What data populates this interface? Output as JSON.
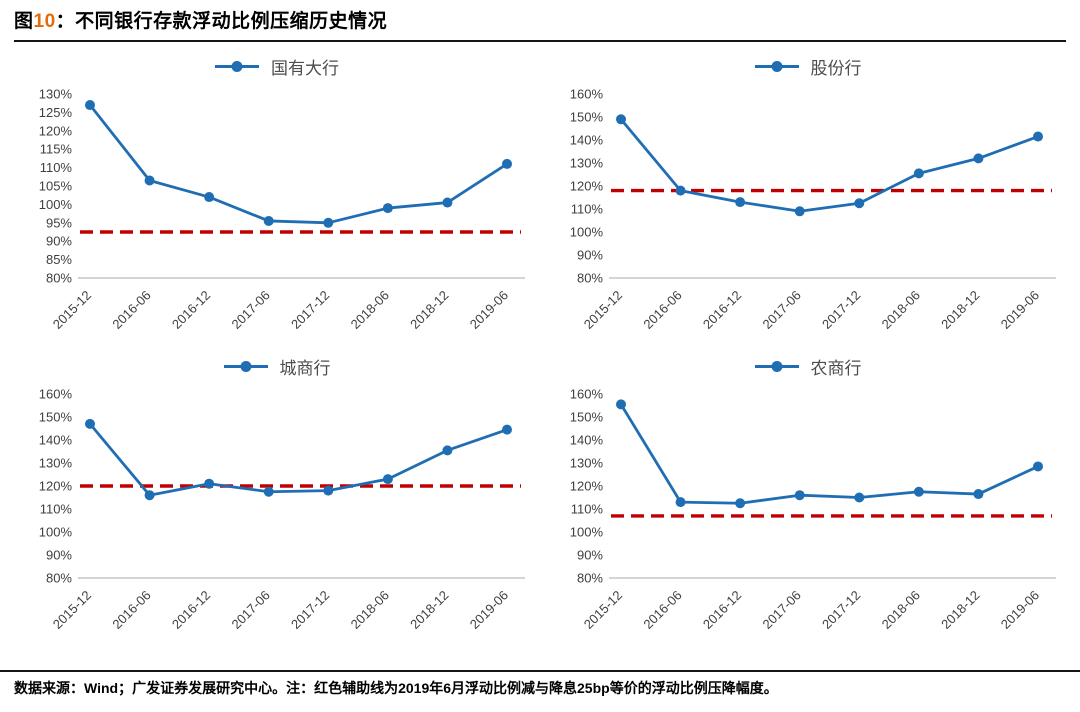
{
  "header": {
    "fig_word": "图",
    "fig_num": "10",
    "separator": "：",
    "title": "不同银行存款浮动比例压缩历史情况",
    "accent_color": "#E36C0A"
  },
  "footer": {
    "text": "数据来源：Wind；广发证券发展研究中心。注：红色辅助线为2019年6月浮动比例减与降息25bp等价的浮动比例压降幅度。"
  },
  "colors": {
    "series_blue": "#1F6EB4",
    "reference_red": "#C00000",
    "axis_line": "#C6C6C6",
    "tick_text": "#3F3F3F",
    "legend_text": "#4D4D4D"
  },
  "chart_data": [
    {
      "type": "line",
      "legend": "国有大行",
      "legend_position": "top",
      "grid": false,
      "categories": [
        "2015-12",
        "2016-06",
        "2016-12",
        "2017-06",
        "2017-12",
        "2018-06",
        "2018-12",
        "2019-06"
      ],
      "values": [
        127,
        106.5,
        102,
        95.5,
        95,
        99,
        100.5,
        111
      ],
      "reference_line": 92.5,
      "ylim": [
        80,
        130
      ],
      "ytick_step": 5,
      "ytick_suffix": "%"
    },
    {
      "type": "line",
      "legend": "股份行",
      "legend_position": "top",
      "grid": false,
      "categories": [
        "2015-12",
        "2016-06",
        "2016-12",
        "2017-06",
        "2017-12",
        "2018-06",
        "2018-12",
        "2019-06"
      ],
      "values": [
        149,
        118,
        113,
        109,
        112.5,
        125.5,
        132,
        141.5
      ],
      "reference_line": 118,
      "ylim": [
        80,
        160
      ],
      "ytick_step": 10,
      "ytick_suffix": "%"
    },
    {
      "type": "line",
      "legend": "城商行",
      "legend_position": "top",
      "grid": false,
      "categories": [
        "2015-12",
        "2016-06",
        "2016-12",
        "2017-06",
        "2017-12",
        "2018-06",
        "2018-12",
        "2019-06"
      ],
      "values": [
        147,
        116,
        121,
        117.5,
        118,
        123,
        135.5,
        144.5
      ],
      "reference_line": 120,
      "ylim": [
        80,
        160
      ],
      "ytick_step": 10,
      "ytick_suffix": "%"
    },
    {
      "type": "line",
      "legend": "农商行",
      "legend_position": "top",
      "grid": false,
      "categories": [
        "2015-12",
        "2016-06",
        "2016-12",
        "2017-06",
        "2017-12",
        "2018-06",
        "2018-12",
        "2019-06"
      ],
      "values": [
        155.5,
        113,
        112.5,
        116,
        115,
        117.5,
        116.5,
        128.5
      ],
      "reference_line": 107,
      "ylim": [
        80,
        160
      ],
      "ytick_step": 10,
      "ytick_suffix": "%"
    }
  ]
}
